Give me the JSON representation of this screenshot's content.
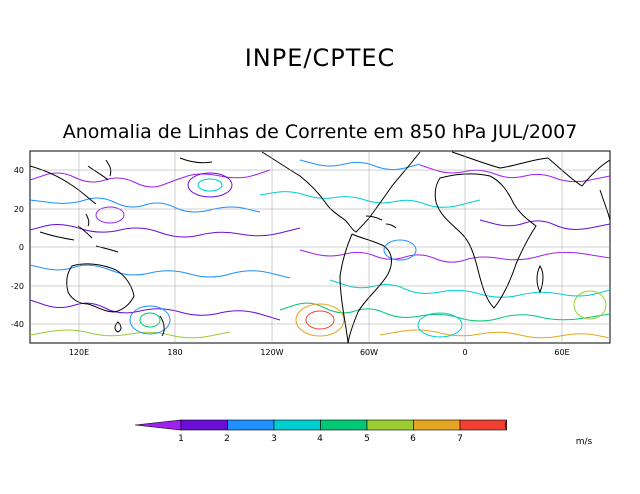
{
  "header": {
    "title": "INPE/CPTEC",
    "subtitle": "Anomalia de Linhas de Corrente em 850 hPa JUL/2007"
  },
  "map": {
    "lon_ticks": [
      "120E",
      "180",
      "120W",
      "60W",
      "0",
      "60E"
    ],
    "lat_ticks": [
      "40",
      "20",
      "0",
      "-20",
      "-40"
    ],
    "grid": true,
    "background": "#ffffff"
  },
  "colorbar": {
    "labels": [
      "1",
      "2",
      "3",
      "4",
      "5",
      "6",
      "7"
    ],
    "colors": [
      "#a020f0",
      "#6a0dd6",
      "#1e90ff",
      "#00ced1",
      "#00c875",
      "#9acd32",
      "#e6a520",
      "#f04030",
      "#ff1493"
    ],
    "unit": "m/s"
  }
}
